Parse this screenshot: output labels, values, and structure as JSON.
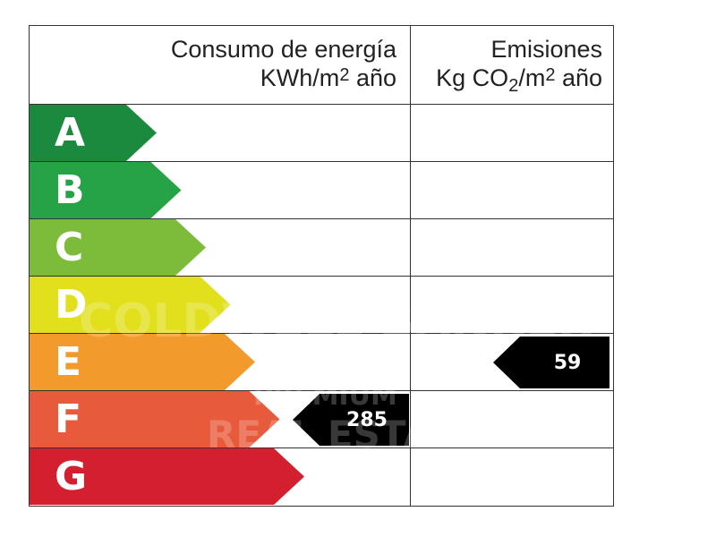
{
  "header": {
    "energy_title_line1": "Consumo de energía",
    "energy_unit_a": "KWh/m",
    "energy_unit_sup": "2",
    "energy_unit_b": " año",
    "emissions_title_line1": "Emisiones",
    "emissions_unit_a": "Kg CO",
    "emissions_unit_sub": "2",
    "emissions_unit_b": "/m",
    "emissions_unit_sup": "2",
    "emissions_unit_c": " año"
  },
  "watermark": {
    "line1": "COLDWELL BANKER",
    "line2": "PREMIUM",
    "line3": "REAL ESTATE"
  },
  "chart_data": {
    "type": "bar",
    "categories": [
      "A",
      "B",
      "C",
      "D",
      "E",
      "F",
      "G"
    ],
    "colors": [
      "#1b8a3e",
      "#25a346",
      "#7cbc3a",
      "#e2df1c",
      "#f39a2c",
      "#e85a3c",
      "#d41f2f"
    ],
    "energy_consumption": {
      "rating": "F",
      "value": "285"
    },
    "emissions": {
      "rating": "E",
      "value": "59"
    }
  }
}
